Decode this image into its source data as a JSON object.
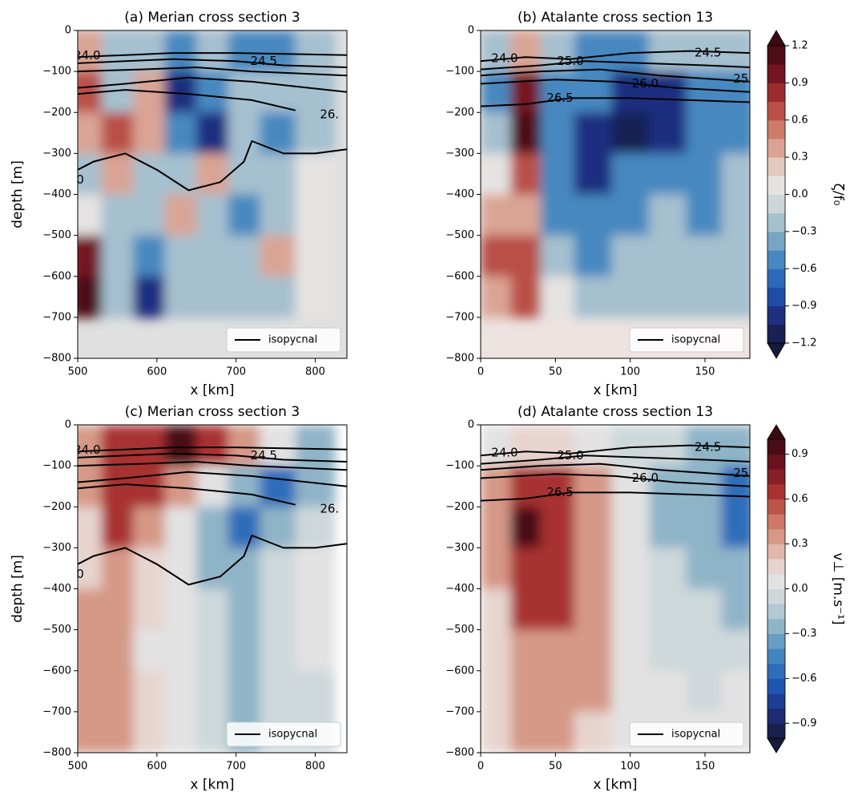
{
  "colormap": [
    "#161a3b",
    "#1e2e7e",
    "#1f58b5",
    "#3f84bf",
    "#87afc6",
    "#c6d4d9",
    "#ebe6e4",
    "#deb0a2",
    "#cc7762",
    "#ac3432",
    "#731421",
    "#3b0912"
  ],
  "chart_data": [
    {
      "type": "contour",
      "title": "(a) Merian cross section 3",
      "xlabel": "x [km]",
      "ylabel": "depth [m]",
      "xlim": [
        500,
        840
      ],
      "xticks": [
        500,
        600,
        700,
        800
      ],
      "ylim": [
        -800,
        0
      ],
      "yticks": [
        0,
        {
          "value": -100,
          "label": "−100"
        },
        {
          "value": -200,
          "label": "−200"
        },
        {
          "value": -300,
          "label": "−300"
        },
        {
          "value": -400,
          "label": "−400"
        },
        {
          "value": -500,
          "label": "−500"
        },
        {
          "value": -600,
          "label": "−600"
        },
        {
          "value": -700,
          "label": "−700"
        },
        {
          "value": -800,
          "label": "−800"
        }
      ],
      "clim": [
        -1.2,
        1.2
      ],
      "levels": 16,
      "nodata_color": "#e0e0e0",
      "x": [
        510,
        550,
        590,
        630,
        670,
        710,
        750,
        800
      ],
      "y": [
        -50,
        -150,
        -250,
        -350,
        -450,
        -550,
        -650
      ],
      "z": [
        [
          0.3,
          -0.3,
          -0.3,
          -0.6,
          -0.3,
          -0.6,
          -0.6,
          -0.3
        ],
        [
          0.6,
          -0.3,
          0.3,
          -0.9,
          -0.6,
          -0.3,
          -0.3,
          -0.3
        ],
        [
          0.3,
          0.6,
          0.3,
          -0.6,
          -0.9,
          -0.3,
          -0.6,
          -0.3
        ],
        [
          -0.3,
          0.3,
          -0.3,
          -0.3,
          0.3,
          -0.3,
          -0.3,
          0
        ],
        [
          0,
          -0.3,
          -0.3,
          0.3,
          -0.3,
          -0.6,
          -0.3,
          0
        ],
        [
          0.9,
          -0.3,
          -0.6,
          -0.3,
          -0.3,
          -0.3,
          0.3,
          0
        ],
        [
          1.2,
          -0.3,
          -0.9,
          -0.3,
          -0.3,
          -0.3,
          -0.3,
          0
        ]
      ],
      "isopycnals": [
        {
          "x": [
            500,
            560,
            620,
            700,
            840
          ],
          "y": [
            -65,
            -60,
            -55,
            -55,
            -60
          ]
        },
        {
          "x": [
            500,
            560,
            620,
            700,
            760,
            840
          ],
          "y": [
            -80,
            -75,
            -70,
            -75,
            -85,
            -90
          ]
        },
        {
          "x": [
            500,
            580,
            650,
            720,
            840
          ],
          "y": [
            -100,
            -95,
            -90,
            -100,
            -110
          ]
        },
        {
          "x": [
            500,
            560,
            640,
            720,
            840
          ],
          "y": [
            -140,
            -130,
            -115,
            -125,
            -150
          ]
        },
        {
          "x": [
            500,
            560,
            640,
            720,
            775
          ],
          "y": [
            -155,
            -145,
            -155,
            -170,
            -195
          ]
        },
        {
          "x": [
            500,
            520,
            560,
            600,
            640,
            680,
            710,
            720,
            760,
            800,
            840
          ],
          "y": [
            -340,
            -320,
            -300,
            -340,
            -390,
            -370,
            -320,
            -270,
            -300,
            -300,
            -290
          ]
        }
      ],
      "contour_labels": [
        {
          "text": "24.0",
          "x": 512,
          "y": -62
        },
        {
          "text": "24.5",
          "x": 735,
          "y": -75
        },
        {
          "text": "26.",
          "x": 818,
          "y": -205
        },
        {
          "text": "0",
          "x": 503,
          "y": -365
        }
      ],
      "legend": "isopycnal",
      "legend_loc": "lower right"
    },
    {
      "type": "contour",
      "title": "(b) Atalante cross section 13",
      "xlabel": "x [km]",
      "xlim": [
        0,
        180
      ],
      "xticks": [
        0,
        50,
        100,
        150
      ],
      "ylim": [
        -800,
        0
      ],
      "yticks": [
        0,
        {
          "value": -100,
          "label": "−100"
        },
        {
          "value": -200,
          "label": "−200"
        },
        {
          "value": -300,
          "label": "−300"
        },
        {
          "value": -400,
          "label": "−400"
        },
        {
          "value": -500,
          "label": "−500"
        },
        {
          "value": -600,
          "label": "−600"
        },
        {
          "value": -700,
          "label": "−700"
        },
        {
          "value": -800,
          "label": "−800"
        }
      ],
      "clim": [
        -1.2,
        1.2
      ],
      "levels": 16,
      "nodata_color": "#ede3e1",
      "x": [
        10,
        30,
        50,
        75,
        100,
        125,
        150,
        172
      ],
      "y": [
        -50,
        -150,
        -250,
        -350,
        -450,
        -550,
        -650
      ],
      "z": [
        [
          -0.3,
          0.3,
          -0.3,
          -0.6,
          -0.6,
          -0.3,
          -0.3,
          -0.3
        ],
        [
          -0.6,
          0.9,
          -0.6,
          -0.6,
          -0.9,
          -0.9,
          -0.6,
          -0.6
        ],
        [
          -0.3,
          1.2,
          -0.6,
          -0.9,
          -1.2,
          -0.9,
          -0.6,
          -0.6
        ],
        [
          0,
          0.6,
          -0.6,
          -0.9,
          -0.6,
          -0.6,
          -0.6,
          -0.3
        ],
        [
          0.3,
          0.3,
          -0.6,
          -0.6,
          -0.6,
          -0.3,
          -0.6,
          -0.3
        ],
        [
          0.6,
          0.6,
          -0.3,
          -0.6,
          -0.3,
          -0.3,
          -0.3,
          -0.3
        ],
        [
          0.3,
          0.6,
          0,
          -0.3,
          -0.3,
          -0.3,
          -0.3,
          -0.3
        ]
      ],
      "isopycnals": [
        {
          "x": [
            0,
            30,
            60,
            100,
            140,
            180
          ],
          "y": [
            -75,
            -65,
            -70,
            -55,
            -50,
            -55
          ]
        },
        {
          "x": [
            0,
            40,
            70,
            110,
            150,
            180
          ],
          "y": [
            -95,
            -85,
            -75,
            -80,
            -85,
            -90
          ]
        },
        {
          "x": [
            0,
            40,
            80,
            120,
            160,
            180
          ],
          "y": [
            -110,
            -100,
            -95,
            -110,
            -120,
            -125
          ]
        },
        {
          "x": [
            0,
            50,
            90,
            130,
            180
          ],
          "y": [
            -130,
            -120,
            -125,
            -140,
            -150
          ]
        },
        {
          "x": [
            0,
            30,
            60,
            100,
            140,
            180
          ],
          "y": [
            -185,
            -180,
            -165,
            -165,
            -170,
            -175
          ]
        }
      ],
      "contour_labels": [
        {
          "text": "24.0",
          "x": 16,
          "y": -68
        },
        {
          "text": "24.5",
          "x": 152,
          "y": -55
        },
        {
          "text": "25.0",
          "x": 60,
          "y": -75
        },
        {
          "text": "25",
          "x": 174,
          "y": -118
        },
        {
          "text": "26.0",
          "x": 110,
          "y": -130
        },
        {
          "text": "26.5",
          "x": 53,
          "y": -165
        }
      ],
      "legend": "isopycnal",
      "legend_loc": "lower right",
      "colorbar": {
        "label": "ζ/f₀",
        "ticks": [
          1.2,
          0.9,
          0.6,
          0.3,
          {
            "value": 0,
            "label": "0.0"
          },
          {
            "value": -0.3,
            "label": "−0.3"
          },
          {
            "value": -0.6,
            "label": "−0.6"
          },
          {
            "value": -0.9,
            "label": "−0.9"
          },
          {
            "value": -1.2,
            "label": "−1.2"
          }
        ]
      }
    },
    {
      "type": "contour",
      "title": "(c) Merian cross section 3",
      "xlabel": "x [km]",
      "ylabel": "depth [m]",
      "xlim": [
        500,
        840
      ],
      "xticks": [
        500,
        600,
        700,
        800
      ],
      "ylim": [
        -800,
        0
      ],
      "yticks": [
        0,
        {
          "value": -100,
          "label": "−100"
        },
        {
          "value": -200,
          "label": "−200"
        },
        {
          "value": -300,
          "label": "−300"
        },
        {
          "value": -400,
          "label": "−400"
        },
        {
          "value": -500,
          "label": "−500"
        },
        {
          "value": -600,
          "label": "−600"
        },
        {
          "value": -700,
          "label": "−700"
        },
        {
          "value": -800,
          "label": "−800"
        }
      ],
      "clim": [
        -1,
        1
      ],
      "levels": 20,
      "nodata_color": "#ffffff",
      "x": [
        510,
        550,
        590,
        630,
        670,
        710,
        750,
        800
      ],
      "y": [
        -50,
        -150,
        -250,
        -350,
        -450,
        -550,
        -650,
        -750
      ],
      "z": [
        [
          0.3,
          0.6,
          0.6,
          0.9,
          0.6,
          0.3,
          0,
          -0.3
        ],
        [
          0.3,
          0.6,
          0.6,
          0.3,
          0,
          -0.3,
          -0.6,
          -0.3
        ],
        [
          0.1,
          0.6,
          0.3,
          0,
          -0.3,
          -0.6,
          -0.3,
          -0.1
        ],
        [
          0.1,
          0.3,
          0.1,
          0,
          -0.3,
          -0.3,
          -0.1,
          0
        ],
        [
          0.3,
          0.3,
          0.1,
          0,
          -0.1,
          -0.3,
          -0.1,
          0
        ],
        [
          0.3,
          0.3,
          0,
          0,
          -0.1,
          -0.3,
          -0.1,
          0
        ],
        [
          0.3,
          0.3,
          0.1,
          0,
          -0.1,
          -0.3,
          -0.1,
          -0.1
        ],
        [
          0.3,
          0.3,
          0.1,
          0,
          -0.1,
          -0.3,
          -0.1,
          -0.1
        ]
      ],
      "isopycnals": [
        {
          "x": [
            500,
            560,
            620,
            700,
            840
          ],
          "y": [
            -65,
            -60,
            -55,
            -55,
            -60
          ]
        },
        {
          "x": [
            500,
            560,
            620,
            700,
            760,
            840
          ],
          "y": [
            -80,
            -75,
            -70,
            -75,
            -85,
            -90
          ]
        },
        {
          "x": [
            500,
            580,
            650,
            720,
            840
          ],
          "y": [
            -100,
            -95,
            -90,
            -100,
            -110
          ]
        },
        {
          "x": [
            500,
            560,
            640,
            720,
            840
          ],
          "y": [
            -140,
            -130,
            -115,
            -125,
            -150
          ]
        },
        {
          "x": [
            500,
            560,
            640,
            720,
            775
          ],
          "y": [
            -155,
            -145,
            -155,
            -170,
            -195
          ]
        },
        {
          "x": [
            500,
            520,
            560,
            600,
            640,
            680,
            710,
            720,
            760,
            800,
            840
          ],
          "y": [
            -340,
            -320,
            -300,
            -340,
            -390,
            -370,
            -320,
            -270,
            -300,
            -300,
            -290
          ]
        }
      ],
      "contour_labels": [
        {
          "text": "24.0",
          "x": 512,
          "y": -62
        },
        {
          "text": "24.5",
          "x": 735,
          "y": -75
        },
        {
          "text": "26.",
          "x": 818,
          "y": -205
        },
        {
          "text": "0",
          "x": 503,
          "y": -365
        }
      ],
      "legend": "isopycnal",
      "legend_loc": "lower right"
    },
    {
      "type": "contour",
      "title": "(d) Atalante cross section 13",
      "xlabel": "x [km]",
      "xlim": [
        0,
        180
      ],
      "xticks": [
        0,
        50,
        100,
        150
      ],
      "ylim": [
        -800,
        0
      ],
      "yticks": [
        0,
        {
          "value": -100,
          "label": "−100"
        },
        {
          "value": -200,
          "label": "−200"
        },
        {
          "value": -300,
          "label": "−300"
        },
        {
          "value": -400,
          "label": "−400"
        },
        {
          "value": -500,
          "label": "−500"
        },
        {
          "value": -600,
          "label": "−600"
        },
        {
          "value": -700,
          "label": "−700"
        },
        {
          "value": -800,
          "label": "−800"
        }
      ],
      "clim": [
        -1,
        1
      ],
      "levels": 20,
      "nodata_color": "#ffffff",
      "x": [
        10,
        30,
        50,
        75,
        100,
        125,
        150,
        172
      ],
      "y": [
        -50,
        -150,
        -250,
        -350,
        -450,
        -550,
        -650,
        -750
      ],
      "z": [
        [
          0,
          0.1,
          0.1,
          0,
          -0.1,
          -0.1,
          -0.3,
          -0.3
        ],
        [
          0.3,
          0.6,
          0.6,
          0.3,
          0,
          -0.3,
          -0.3,
          -0.6
        ],
        [
          0.3,
          0.9,
          0.6,
          0.3,
          0,
          -0.3,
          -0.3,
          -0.6
        ],
        [
          0.3,
          0.6,
          0.6,
          0.3,
          0,
          -0.1,
          -0.3,
          -0.3
        ],
        [
          0.1,
          0.6,
          0.6,
          0.3,
          0,
          -0.1,
          -0.1,
          -0.3
        ],
        [
          0.1,
          0.3,
          0.3,
          0.3,
          0,
          -0.1,
          -0.1,
          -0.1
        ],
        [
          0.1,
          0.3,
          0.3,
          0.3,
          0,
          0,
          -0.1,
          0
        ],
        [
          0.1,
          0.3,
          0.3,
          0.1,
          0,
          0,
          0,
          0
        ]
      ],
      "isopycnals": [
        {
          "x": [
            0,
            30,
            60,
            100,
            140,
            180
          ],
          "y": [
            -75,
            -65,
            -70,
            -55,
            -50,
            -55
          ]
        },
        {
          "x": [
            0,
            40,
            70,
            110,
            150,
            180
          ],
          "y": [
            -95,
            -85,
            -75,
            -80,
            -85,
            -90
          ]
        },
        {
          "x": [
            0,
            40,
            80,
            120,
            160,
            180
          ],
          "y": [
            -110,
            -100,
            -95,
            -110,
            -120,
            -125
          ]
        },
        {
          "x": [
            0,
            50,
            90,
            130,
            180
          ],
          "y": [
            -130,
            -120,
            -125,
            -140,
            -150
          ]
        },
        {
          "x": [
            0,
            30,
            60,
            100,
            140,
            180
          ],
          "y": [
            -185,
            -180,
            -165,
            -165,
            -170,
            -175
          ]
        }
      ],
      "contour_labels": [
        {
          "text": "24.0",
          "x": 16,
          "y": -68
        },
        {
          "text": "24.5",
          "x": 152,
          "y": -55
        },
        {
          "text": "25.0",
          "x": 60,
          "y": -75
        },
        {
          "text": "25",
          "x": 174,
          "y": -118
        },
        {
          "text": "26.0",
          "x": 110,
          "y": -130
        },
        {
          "text": "26.5",
          "x": 53,
          "y": -165
        }
      ],
      "legend": "isopycnal",
      "legend_loc": "lower right",
      "colorbar": {
        "label": "v⊥ [m.s⁻¹]",
        "ticks": [
          0.9,
          0.6,
          0.3,
          {
            "value": 0,
            "label": "0.0"
          },
          {
            "value": -0.3,
            "label": "−0.3"
          },
          {
            "value": -0.6,
            "label": "−0.6"
          },
          {
            "value": -0.9,
            "label": "−0.9"
          }
        ]
      }
    }
  ]
}
